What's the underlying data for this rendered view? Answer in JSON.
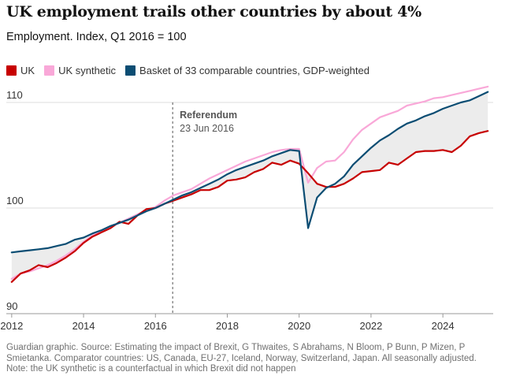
{
  "title": "UK employment trails other countries by about 4%",
  "subtitle": "Employment. Index, Q1 2016 = 100",
  "legend": [
    {
      "label": "UK",
      "color": "#c70000"
    },
    {
      "label": "UK synthetic",
      "color": "#f9a8d8"
    },
    {
      "label": "Basket of 33 comparable countries, GDP-weighted",
      "color": "#0b4d73"
    }
  ],
  "annotation": {
    "title": "Referendum",
    "date": "23 Jun 2016"
  },
  "source": {
    "line1": "Guardian graphic. Source: Estimating the impact of Brexit, G Thwaites, S Abrahams, N Bloom, P Bunn, P Mizen, P Smietanka. Comparator countries: US, Canada, EU-27, Iceland, Norway, Switzerland, Japan. All seasonally adjusted.",
    "line2": "Note: the UK synthetic is a counterfactual in which Brexit did not happen"
  },
  "chart_data": {
    "type": "line",
    "xlim": [
      2011.85,
      2025.4
    ],
    "ylim": [
      90,
      110
    ],
    "yticks": [
      90,
      100,
      110
    ],
    "xticks": [
      2012,
      2014,
      2016,
      2018,
      2020,
      2022,
      2024
    ],
    "grid": "horizontal",
    "legend_position": "top-left",
    "shaded_gap": "between UK and Basket",
    "reference_line": {
      "x": 2016.48,
      "label": "Referendum",
      "sublabel": "23 Jun 2016"
    },
    "series": [
      {
        "name": "UK",
        "color": "#c70000",
        "points": [
          [
            2012.0,
            93.0
          ],
          [
            2012.25,
            93.8
          ],
          [
            2012.5,
            94.1
          ],
          [
            2012.75,
            94.6
          ],
          [
            2013.0,
            94.4
          ],
          [
            2013.25,
            94.8
          ],
          [
            2013.5,
            95.3
          ],
          [
            2013.75,
            95.9
          ],
          [
            2014.0,
            96.7
          ],
          [
            2014.25,
            97.3
          ],
          [
            2014.5,
            97.7
          ],
          [
            2014.75,
            98.1
          ],
          [
            2015.0,
            98.7
          ],
          [
            2015.25,
            98.5
          ],
          [
            2015.5,
            99.3
          ],
          [
            2015.75,
            99.9
          ],
          [
            2016.0,
            100.0
          ],
          [
            2016.25,
            100.4
          ],
          [
            2016.5,
            100.7
          ],
          [
            2016.75,
            101.0
          ],
          [
            2017.0,
            101.3
          ],
          [
            2017.25,
            101.7
          ],
          [
            2017.5,
            101.7
          ],
          [
            2017.75,
            102.0
          ],
          [
            2018.0,
            102.6
          ],
          [
            2018.25,
            102.7
          ],
          [
            2018.5,
            102.9
          ],
          [
            2018.75,
            103.4
          ],
          [
            2019.0,
            103.7
          ],
          [
            2019.25,
            104.3
          ],
          [
            2019.5,
            104.1
          ],
          [
            2019.75,
            104.5
          ],
          [
            2020.0,
            104.2
          ],
          [
            2020.25,
            103.3
          ],
          [
            2020.5,
            102.3
          ],
          [
            2020.75,
            102.0
          ],
          [
            2021.0,
            102.0
          ],
          [
            2021.25,
            102.3
          ],
          [
            2021.5,
            102.8
          ],
          [
            2021.75,
            103.4
          ],
          [
            2022.0,
            103.5
          ],
          [
            2022.25,
            103.6
          ],
          [
            2022.5,
            104.3
          ],
          [
            2022.75,
            104.1
          ],
          [
            2023.0,
            104.7
          ],
          [
            2023.25,
            105.3
          ],
          [
            2023.5,
            105.4
          ],
          [
            2023.75,
            105.4
          ],
          [
            2024.0,
            105.5
          ],
          [
            2024.25,
            105.3
          ],
          [
            2024.5,
            105.9
          ],
          [
            2024.75,
            106.8
          ],
          [
            2025.0,
            107.1
          ],
          [
            2025.25,
            107.3
          ]
        ]
      },
      {
        "name": "UK synthetic",
        "color": "#f9a8d8",
        "points": [
          [
            2012.0,
            93.3
          ],
          [
            2012.25,
            93.8
          ],
          [
            2012.5,
            94.0
          ],
          [
            2012.75,
            94.3
          ],
          [
            2013.0,
            94.6
          ],
          [
            2013.25,
            95.0
          ],
          [
            2013.5,
            95.5
          ],
          [
            2013.75,
            96.1
          ],
          [
            2014.0,
            96.8
          ],
          [
            2014.25,
            97.4
          ],
          [
            2014.5,
            97.8
          ],
          [
            2014.75,
            98.2
          ],
          [
            2015.0,
            98.6
          ],
          [
            2015.25,
            99.0
          ],
          [
            2015.5,
            99.4
          ],
          [
            2015.75,
            99.8
          ],
          [
            2016.0,
            100.1
          ],
          [
            2016.25,
            100.7
          ],
          [
            2016.5,
            101.2
          ],
          [
            2016.75,
            101.5
          ],
          [
            2017.0,
            101.8
          ],
          [
            2017.25,
            102.3
          ],
          [
            2017.5,
            102.8
          ],
          [
            2017.75,
            103.2
          ],
          [
            2018.0,
            103.6
          ],
          [
            2018.25,
            104.0
          ],
          [
            2018.5,
            104.4
          ],
          [
            2018.75,
            104.7
          ],
          [
            2019.0,
            105.0
          ],
          [
            2019.25,
            105.3
          ],
          [
            2019.5,
            105.5
          ],
          [
            2019.75,
            105.6
          ],
          [
            2020.0,
            105.6
          ],
          [
            2020.25,
            102.4
          ],
          [
            2020.5,
            103.8
          ],
          [
            2020.75,
            104.4
          ],
          [
            2021.0,
            104.5
          ],
          [
            2021.25,
            105.3
          ],
          [
            2021.5,
            106.5
          ],
          [
            2021.75,
            107.4
          ],
          [
            2022.0,
            108.0
          ],
          [
            2022.25,
            108.6
          ],
          [
            2022.5,
            108.9
          ],
          [
            2022.75,
            109.2
          ],
          [
            2023.0,
            109.7
          ],
          [
            2023.25,
            109.9
          ],
          [
            2023.5,
            110.1
          ],
          [
            2023.75,
            110.4
          ],
          [
            2024.0,
            110.5
          ],
          [
            2024.25,
            110.7
          ],
          [
            2024.5,
            110.9
          ],
          [
            2024.75,
            111.1
          ],
          [
            2025.0,
            111.3
          ],
          [
            2025.25,
            111.5
          ]
        ]
      },
      {
        "name": "Basket of 33 comparable countries, GDP-weighted",
        "color": "#0b4d73",
        "points": [
          [
            2012.0,
            95.8
          ],
          [
            2012.25,
            95.9
          ],
          [
            2012.5,
            96.0
          ],
          [
            2012.75,
            96.1
          ],
          [
            2013.0,
            96.2
          ],
          [
            2013.25,
            96.4
          ],
          [
            2013.5,
            96.6
          ],
          [
            2013.75,
            97.0
          ],
          [
            2014.0,
            97.2
          ],
          [
            2014.25,
            97.6
          ],
          [
            2014.5,
            97.9
          ],
          [
            2014.75,
            98.3
          ],
          [
            2015.0,
            98.6
          ],
          [
            2015.25,
            98.9
          ],
          [
            2015.5,
            99.3
          ],
          [
            2015.75,
            99.7
          ],
          [
            2016.0,
            100.0
          ],
          [
            2016.25,
            100.4
          ],
          [
            2016.5,
            100.8
          ],
          [
            2016.75,
            101.2
          ],
          [
            2017.0,
            101.5
          ],
          [
            2017.25,
            101.9
          ],
          [
            2017.5,
            102.3
          ],
          [
            2017.75,
            102.7
          ],
          [
            2018.0,
            103.2
          ],
          [
            2018.25,
            103.6
          ],
          [
            2018.5,
            103.9
          ],
          [
            2018.75,
            104.2
          ],
          [
            2019.0,
            104.5
          ],
          [
            2019.25,
            104.9
          ],
          [
            2019.5,
            105.2
          ],
          [
            2019.75,
            105.5
          ],
          [
            2020.0,
            105.4
          ],
          [
            2020.25,
            98.1
          ],
          [
            2020.5,
            101.0
          ],
          [
            2020.75,
            101.9
          ],
          [
            2021.0,
            102.3
          ],
          [
            2021.25,
            103.0
          ],
          [
            2021.5,
            104.1
          ],
          [
            2021.75,
            104.9
          ],
          [
            2022.0,
            105.7
          ],
          [
            2022.25,
            106.4
          ],
          [
            2022.5,
            106.9
          ],
          [
            2022.75,
            107.5
          ],
          [
            2023.0,
            108.0
          ],
          [
            2023.25,
            108.3
          ],
          [
            2023.5,
            108.7
          ],
          [
            2023.75,
            109.0
          ],
          [
            2024.0,
            109.4
          ],
          [
            2024.25,
            109.7
          ],
          [
            2024.5,
            110.0
          ],
          [
            2024.75,
            110.2
          ],
          [
            2025.0,
            110.6
          ],
          [
            2025.25,
            111.0
          ]
        ]
      }
    ]
  }
}
